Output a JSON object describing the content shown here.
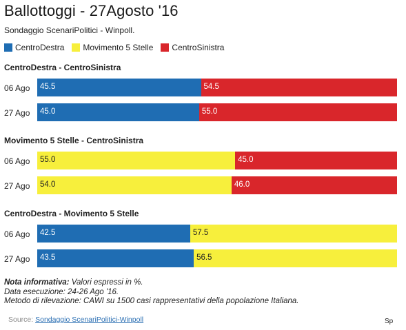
{
  "title": "Ballottoggi - 27Agosto '16",
  "subtitle": "Sondaggio ScenariPolitici - Winpoll.",
  "legend": [
    {
      "label": "CentroDestra",
      "color": "#1f6db3"
    },
    {
      "label": "Movimento 5 Stelle",
      "color": "#f7ef3c"
    },
    {
      "label": "CentroSinistra",
      "color": "#d9262b"
    }
  ],
  "chart_data": {
    "type": "bar",
    "orientation": "horizontal",
    "stacked": true,
    "xlim": [
      0,
      100
    ],
    "groups": [
      {
        "title": "CentroDestra - CentroSinistra",
        "rows": [
          {
            "label": "06 Ago",
            "segments": [
              {
                "series": "CentroDestra",
                "value": 45.5,
                "text": "45.5"
              },
              {
                "series": "CentroSinistra",
                "value": 54.5,
                "text": "54.5"
              }
            ]
          },
          {
            "label": "27 Ago",
            "segments": [
              {
                "series": "CentroDestra",
                "value": 45.0,
                "text": "45.0"
              },
              {
                "series": "CentroSinistra",
                "value": 55.0,
                "text": "55.0"
              }
            ]
          }
        ]
      },
      {
        "title": "Movimento 5 Stelle - CentroSinistra",
        "rows": [
          {
            "label": "06 Ago",
            "segments": [
              {
                "series": "Movimento 5 Stelle",
                "value": 55.0,
                "text": "55.0"
              },
              {
                "series": "CentroSinistra",
                "value": 45.0,
                "text": "45.0"
              }
            ]
          },
          {
            "label": "27 Ago",
            "segments": [
              {
                "series": "Movimento 5 Stelle",
                "value": 54.0,
                "text": "54.0"
              },
              {
                "series": "CentroSinistra",
                "value": 46.0,
                "text": "46.0"
              }
            ]
          }
        ]
      },
      {
        "title": "CentroDestra - Movimento 5 Stelle",
        "rows": [
          {
            "label": "06 Ago",
            "segments": [
              {
                "series": "CentroDestra",
                "value": 42.5,
                "text": "42.5"
              },
              {
                "series": "Movimento 5 Stelle",
                "value": 57.5,
                "text": "57.5"
              }
            ]
          },
          {
            "label": "27 Ago",
            "segments": [
              {
                "series": "CentroDestra",
                "value": 43.5,
                "text": "43.5"
              },
              {
                "series": "Movimento 5 Stelle",
                "value": 56.5,
                "text": "56.5"
              }
            ]
          }
        ]
      }
    ]
  },
  "notes": {
    "line1_bold": "Nota informativa:",
    "line1_rest": " Valori espressi in %.",
    "line2": "Data esecuzione: 24-26 Ago '16.",
    "line3": "Metodo di rilevazione: CAWI su 1500 casi rappresentativi della popolazione Italiana."
  },
  "source": {
    "prefix": "Source: ",
    "link": "Sondaggio ScenariPolitici-Winpoll"
  },
  "watermark": "Sp"
}
